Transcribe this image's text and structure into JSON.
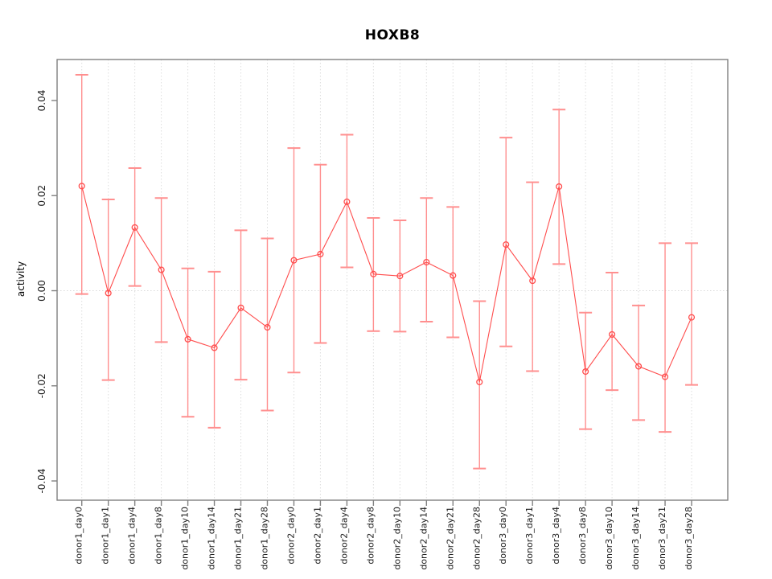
{
  "title": "HOXB8",
  "ylabel": "activity",
  "chart_data": {
    "type": "line",
    "subtype": "points-with-error-bars",
    "title": "HOXB8",
    "xlabel": "",
    "ylabel": "activity",
    "categories": [
      "donor1_day0",
      "donor1_day1",
      "donor1_day4",
      "donor1_day8",
      "donor1_day10",
      "donor1_day14",
      "donor1_day21",
      "donor1_day28",
      "donor2_day0",
      "donor2_day1",
      "donor2_day4",
      "donor2_day8",
      "donor2_day10",
      "donor2_day14",
      "donor2_day21",
      "donor2_day28",
      "donor3_day0",
      "donor3_day1",
      "donor3_day4",
      "donor3_day8",
      "donor3_day10",
      "donor3_day14",
      "donor3_day21",
      "donor3_day28"
    ],
    "series": [
      {
        "name": "activity",
        "values": [
          0.022,
          -0.0005,
          0.0133,
          0.0044,
          -0.0102,
          -0.012,
          -0.0036,
          -0.0077,
          0.0064,
          0.0077,
          0.0187,
          0.0035,
          0.0031,
          0.006,
          0.0032,
          -0.0192,
          0.0097,
          0.0021,
          0.0219,
          -0.017,
          -0.0092,
          -0.0159,
          -0.0181,
          -0.0056
        ],
        "error_low": [
          -0.0007,
          -0.0188,
          0.001,
          -0.0108,
          -0.0265,
          -0.0288,
          -0.0187,
          -0.0252,
          -0.0172,
          -0.011,
          0.0049,
          -0.0085,
          -0.0086,
          -0.0065,
          -0.0098,
          -0.0374,
          -0.0117,
          -0.0169,
          0.0056,
          -0.0291,
          -0.0209,
          -0.0272,
          -0.0297,
          -0.0198
        ],
        "error_high": [
          0.0454,
          0.0192,
          0.0258,
          0.0195,
          0.0047,
          0.004,
          0.0127,
          0.011,
          0.03,
          0.0265,
          0.0328,
          0.0153,
          0.0148,
          0.0195,
          0.0176,
          -0.0022,
          0.0322,
          0.0228,
          0.0381,
          -0.0046,
          0.0038,
          -0.0031,
          0.01,
          0.01
        ]
      }
    ],
    "yticks": [
      -0.04,
      -0.02,
      0,
      0.02,
      0.04
    ],
    "ytick_labels": [
      "-0.04",
      "-0.02",
      "0.00",
      "0.02",
      "0.04"
    ],
    "ylim": [
      -0.04405,
      0.04862
    ],
    "grid": {
      "vertical_dotted_per_category": true,
      "horizontal_dotted_zero_line": true
    },
    "legend": "none",
    "colors": {
      "point_and_line": "#ff4d4d",
      "error_bar": "#ff8f8f",
      "gridline": "#dedede",
      "zero_line": "#d9d9d9",
      "axis_box": "#818181",
      "tick_text": "#1a1a1a",
      "title_text": "#000000",
      "background": "#ffffff"
    }
  },
  "note_fix": {
    "last_error_high": 0.01
  }
}
